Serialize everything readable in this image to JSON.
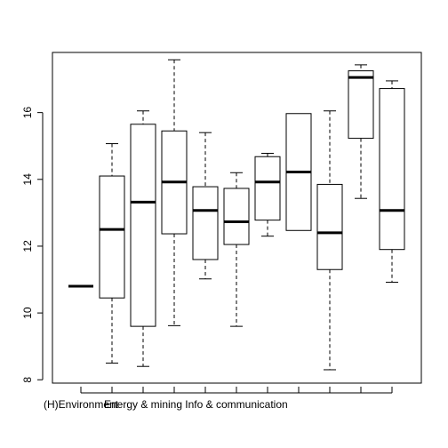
{
  "chart_data": {
    "type": "boxplot",
    "title": "",
    "xlabel": "",
    "ylabel": "",
    "ylim": [
      7.9,
      17.8
    ],
    "y_ticks": [
      8,
      10,
      12,
      14,
      16
    ],
    "x_tick_labels": [
      "(H)Environment",
      "",
      "Energy & mining",
      "",
      "",
      "Info & communication",
      "",
      "",
      "",
      "",
      ""
    ],
    "boxes": [
      {
        "min": 10.8,
        "q1": 10.8,
        "median": 10.8,
        "q3": 10.8,
        "max": 10.8
      },
      {
        "min": 8.5,
        "q1": 10.45,
        "median": 12.5,
        "q3": 14.1,
        "max": 15.07
      },
      {
        "min": 8.4,
        "q1": 9.6,
        "median": 13.32,
        "q3": 15.65,
        "max": 16.05
      },
      {
        "min": 9.62,
        "q1": 12.37,
        "median": 13.92,
        "q3": 15.45,
        "max": 17.58
      },
      {
        "min": 11.02,
        "q1": 11.6,
        "median": 13.07,
        "q3": 13.78,
        "max": 15.4
      },
      {
        "min": 9.6,
        "q1": 12.05,
        "median": 12.73,
        "q3": 13.73,
        "max": 14.2
      },
      {
        "min": 12.3,
        "q1": 12.78,
        "median": 13.92,
        "q3": 14.68,
        "max": 14.78
      },
      {
        "min": 12.47,
        "q1": 12.47,
        "median": 14.22,
        "q3": 15.97,
        "max": 15.97
      },
      {
        "min": 8.3,
        "q1": 11.3,
        "median": 12.4,
        "q3": 13.85,
        "max": 16.05
      },
      {
        "min": 13.43,
        "q1": 15.23,
        "median": 17.05,
        "q3": 17.25,
        "max": 17.43
      },
      {
        "min": 10.92,
        "q1": 11.9,
        "median": 13.07,
        "q3": 16.72,
        "max": 16.95
      }
    ]
  }
}
